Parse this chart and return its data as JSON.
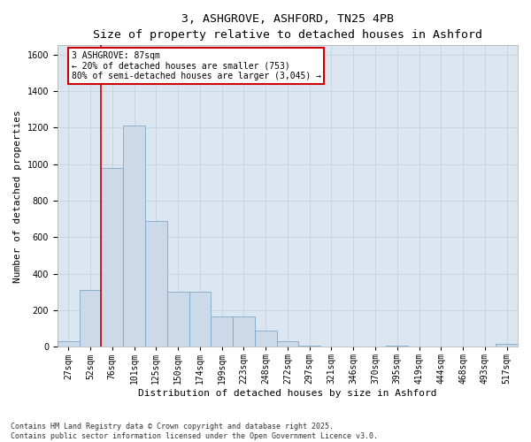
{
  "title_line1": "3, ASHGROVE, ASHFORD, TN25 4PB",
  "title_line2": "Size of property relative to detached houses in Ashford",
  "xlabel": "Distribution of detached houses by size in Ashford",
  "ylabel": "Number of detached properties",
  "categories": [
    "27sqm",
    "52sqm",
    "76sqm",
    "101sqm",
    "125sqm",
    "150sqm",
    "174sqm",
    "199sqm",
    "223sqm",
    "248sqm",
    "272sqm",
    "297sqm",
    "321sqm",
    "346sqm",
    "370sqm",
    "395sqm",
    "419sqm",
    "444sqm",
    "468sqm",
    "493sqm",
    "517sqm"
  ],
  "values": [
    30,
    310,
    980,
    1210,
    690,
    300,
    300,
    165,
    165,
    90,
    30,
    5,
    0,
    0,
    0,
    5,
    0,
    0,
    0,
    0,
    15
  ],
  "bar_color": "#ccd9e8",
  "bar_edge_color": "#7aaac8",
  "vline_x_index": 2,
  "vline_color": "#cc0000",
  "annotation_text": "3 ASHGROVE: 87sqm\n← 20% of detached houses are smaller (753)\n80% of semi-detached houses are larger (3,045) →",
  "annotation_fontsize": 7,
  "box_edge_color": "#cc0000",
  "ylim": [
    0,
    1650
  ],
  "yticks": [
    0,
    200,
    400,
    600,
    800,
    1000,
    1200,
    1400,
    1600
  ],
  "grid_color": "#c8d0dc",
  "background_color": "#dce6f0",
  "footer_text": "Contains HM Land Registry data © Crown copyright and database right 2025.\nContains public sector information licensed under the Open Government Licence v3.0.",
  "title_fontsize": 9.5,
  "xlabel_fontsize": 8,
  "ylabel_fontsize": 8,
  "tick_fontsize": 7,
  "footer_fontsize": 6
}
